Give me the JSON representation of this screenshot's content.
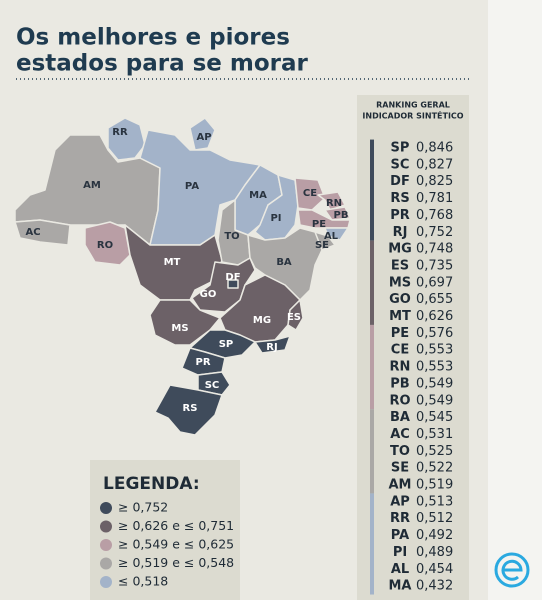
{
  "header": {
    "title": [
      "Os melhores e piores",
      "estados para se morar"
    ]
  },
  "ranking": {
    "title": [
      "RANKING GERAL",
      "INDICADOR SINTÉTICO"
    ],
    "groups": [
      {
        "rows": [
          {
            "state": "SP",
            "value": "0,846"
          },
          {
            "state": "SC",
            "value": "0,827"
          },
          {
            "state": "DF",
            "value": "0,825"
          },
          {
            "state": "RS",
            "value": "0,781"
          },
          {
            "state": "PR",
            "value": "0,768"
          },
          {
            "state": "RJ",
            "value": "0,752"
          }
        ]
      },
      {
        "rows": [
          {
            "state": "MG",
            "value": "0,748"
          },
          {
            "state": "ES",
            "value": "0,735"
          },
          {
            "state": "MS",
            "value": "0,697"
          },
          {
            "state": "GO",
            "value": "0,655"
          },
          {
            "state": "MT",
            "value": "0,626"
          }
        ]
      },
      {
        "rows": [
          {
            "state": "PE",
            "value": "0,576"
          },
          {
            "state": "CE",
            "value": "0,553"
          },
          {
            "state": "RN",
            "value": "0,553"
          },
          {
            "state": "PB",
            "value": "0,549"
          },
          {
            "state": "RO",
            "value": "0,549"
          }
        ]
      },
      {
        "rows": [
          {
            "state": "BA",
            "value": "0,545"
          },
          {
            "state": "AC",
            "value": "0,531"
          },
          {
            "state": "TO",
            "value": "0,525"
          },
          {
            "state": "SE",
            "value": "0,522"
          },
          {
            "state": "AM",
            "value": "0,519"
          }
        ]
      },
      {
        "rows": [
          {
            "state": "AP",
            "value": "0,513"
          },
          {
            "state": "RR",
            "value": "0,512"
          },
          {
            "state": "PA",
            "value": "0,492"
          },
          {
            "state": "PI",
            "value": "0,489"
          },
          {
            "state": "AL",
            "value": "0,454"
          },
          {
            "state": "MA",
            "value": "0,432"
          }
        ]
      }
    ]
  },
  "legend": {
    "title": "LEGENDA:",
    "items": [
      {
        "label": "≥ 0,752",
        "color": "#3f4b5b"
      },
      {
        "label": "≥ 0,626 e ≤ 0,751",
        "color": "#6c6167"
      },
      {
        "label": "≥ 0,549 e ≤ 0,625",
        "color": "#b99ea5"
      },
      {
        "label": "≥ 0,519 e ≤ 0,548",
        "color": "#aaa8a6"
      },
      {
        "label": "≤ 0,518",
        "color": "#a3b3c9"
      }
    ]
  }
}
